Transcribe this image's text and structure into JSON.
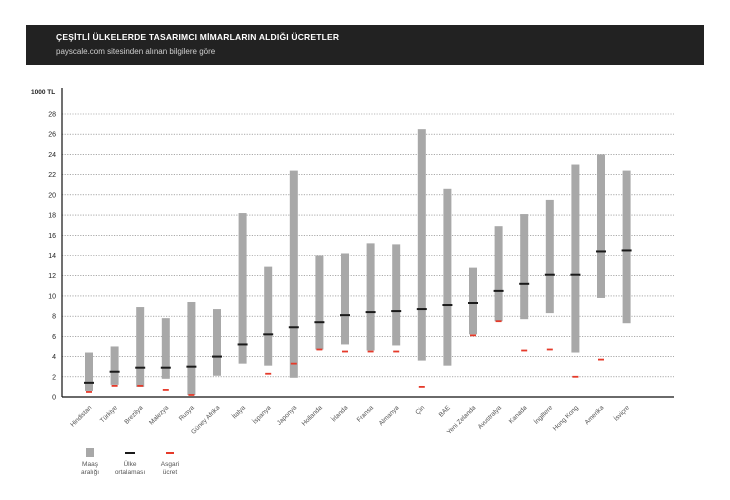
{
  "header": {
    "title": "ÇEŞİTLİ ÜLKELERDE TASARIMCI MİMARLARIN ALDIĞI ÜCRETLER",
    "subtitle": "payscale.com sitesinden alınan bilgilere göre"
  },
  "colors": {
    "header_bg": "#222222",
    "range_bar": "#a8a8a8",
    "average": "#1a1a1a",
    "minimum_wage": "#e53a2a"
  },
  "legend": {
    "range": "Maaş aralığı",
    "average": "Ülke ortalaması",
    "minimum": "Asgari ücret"
  },
  "chart_data": {
    "type": "bar",
    "ylabel": "1000 TL",
    "ylim": [
      0,
      28
    ],
    "yticks": [
      0,
      2,
      4,
      6,
      8,
      10,
      12,
      14,
      16,
      18,
      20,
      22,
      24,
      26,
      28
    ],
    "grid": true,
    "categories": [
      "Hindistan",
      "Türkiye",
      "Brezilya",
      "Malezya",
      "Rusya",
      "Güney Afrika",
      "İtalya",
      "İspanya",
      "Japonya",
      "Hollanda",
      "İrlanda",
      "Fransa",
      "Almanya",
      "Çin",
      "BAE",
      "Yeni Zelanda",
      "Avustralya",
      "Kanada",
      "İngiltere",
      "Hong Kong",
      "Amerika",
      "İsviçre"
    ],
    "series": [
      {
        "name": "Maaş aralığı",
        "kind": "range",
        "low": [
          0.6,
          1.2,
          1.0,
          1.8,
          0.2,
          2.1,
          3.3,
          3.1,
          1.9,
          4.7,
          5.2,
          4.6,
          5.1,
          3.6,
          3.1,
          6.2,
          7.5,
          7.7,
          8.3,
          4.4,
          9.8,
          7.3
        ],
        "high": [
          4.4,
          5.0,
          8.9,
          7.8,
          9.4,
          8.7,
          18.2,
          12.9,
          22.4,
          14.0,
          14.2,
          15.2,
          15.1,
          26.5,
          20.6,
          12.8,
          16.9,
          18.1,
          19.5,
          23.0,
          24.0,
          22.4
        ]
      },
      {
        "name": "Ülke ortalaması",
        "kind": "marker",
        "values": [
          1.4,
          2.5,
          2.9,
          2.9,
          3.0,
          4.0,
          5.2,
          6.2,
          6.9,
          7.4,
          8.1,
          8.4,
          8.5,
          8.7,
          9.1,
          9.3,
          10.5,
          11.2,
          12.1,
          12.1,
          14.4,
          14.5
        ]
      },
      {
        "name": "Asgari ücret",
        "kind": "marker",
        "values": [
          0.5,
          1.1,
          1.1,
          0.7,
          0.2,
          null,
          null,
          2.3,
          3.3,
          4.7,
          4.5,
          4.5,
          4.5,
          1.0,
          null,
          6.1,
          7.5,
          4.6,
          4.7,
          2.0,
          3.7,
          null
        ]
      }
    ]
  }
}
